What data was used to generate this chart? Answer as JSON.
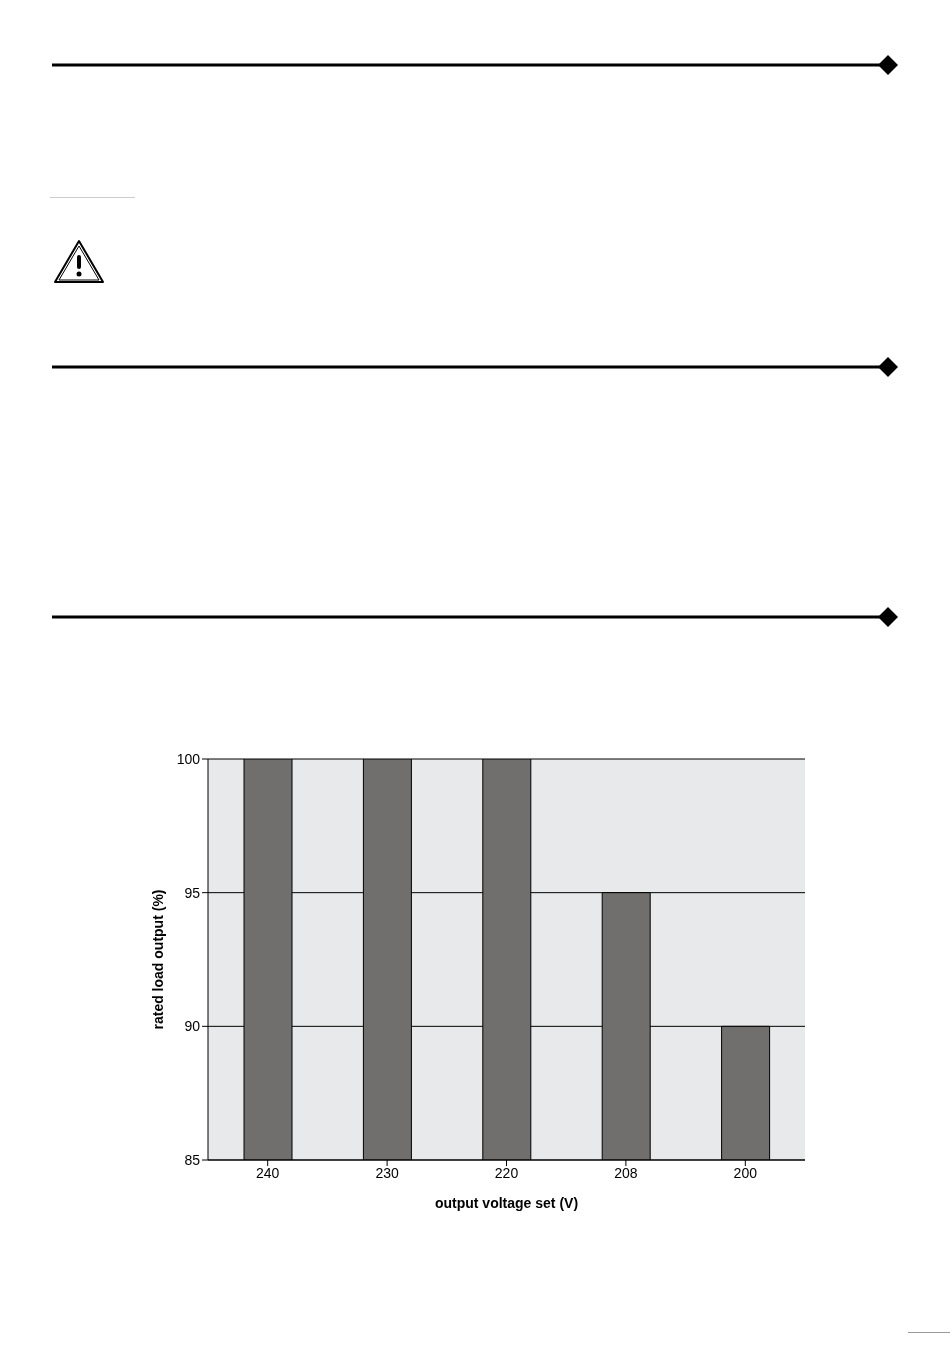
{
  "chart_data": {
    "type": "bar",
    "xlabel": "output voltage set (V)",
    "ylabel": "rated load output (%)",
    "categories": [
      "240",
      "230",
      "220",
      "208",
      "200"
    ],
    "values": [
      100,
      100,
      100,
      95,
      90
    ],
    "color": "#706f6d",
    "ylim": [
      85,
      100
    ],
    "yticks": [
      85,
      90,
      95,
      100
    ],
    "grid": "y"
  }
}
